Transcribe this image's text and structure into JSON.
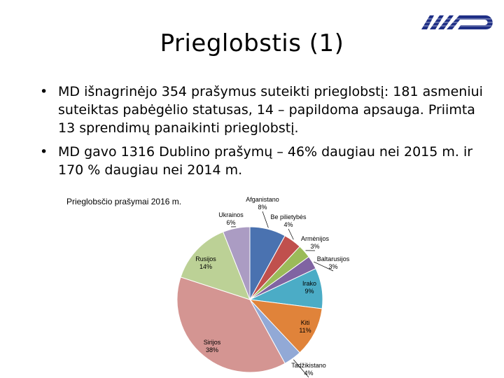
{
  "slide": {
    "title": "Prieglobstis (1)",
    "bullets": [
      "MD išnagrinėjo 354 prašymus suteikti prieglobstį: 181 asmeniui suteiktas pabėgėlio statusas, 14 – papildoma apsauga. Priimta 13 sprendimų panaikinti prieglobstį.",
      "MD gavo 1316 Dublino prašymų – 46% daugiau nei 2015 m. ir 170 % daugiau nei 2014 m."
    ],
    "bullet_symbol": "•"
  },
  "chart_data": {
    "type": "pie",
    "title": "Prieglobsčio prašymai 2016 m.",
    "slices": [
      {
        "label": "Afganistano",
        "value": 8,
        "value_label": "8%",
        "color": "#4a72b0"
      },
      {
        "label": "Be pilietybės",
        "value": 4,
        "value_label": "4%",
        "color": "#c0504d"
      },
      {
        "label": "Armėnijos",
        "value": 3,
        "value_label": "3%",
        "color": "#9bbb59"
      },
      {
        "label": "Baltarusijos",
        "value": 3,
        "value_label": "3%",
        "color": "#8064a2"
      },
      {
        "label": "Irako",
        "value": 9,
        "value_label": "9%",
        "color": "#4bacc6"
      },
      {
        "label": "Kiti",
        "value": 11,
        "value_label": "11%",
        "color": "#e0833a"
      },
      {
        "label": "Tadžikistano",
        "value": 4,
        "value_label": "4%",
        "color": "#92a9d6"
      },
      {
        "label": "Sirijos",
        "value": 38,
        "value_label": "38%",
        "color": "#d49592"
      },
      {
        "label": "Rusijos",
        "value": 14,
        "value_label": "14%",
        "color": "#bcd196"
      },
      {
        "label": "Ukrainos",
        "value": 6,
        "value_label": "6%",
        "color": "#ab9cc3"
      }
    ]
  }
}
